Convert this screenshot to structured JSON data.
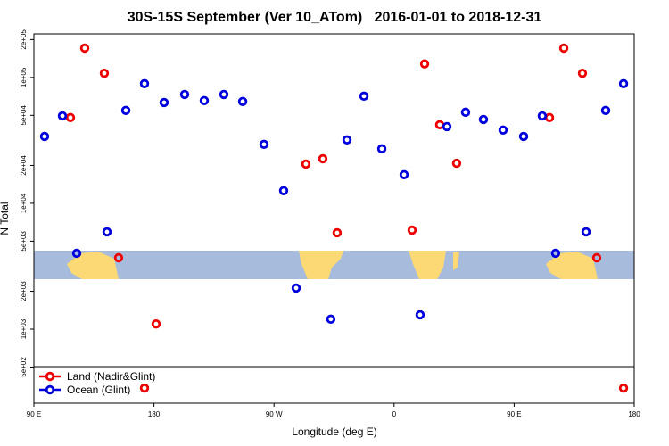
{
  "chart_data": {
    "type": "scatter",
    "title": "30S-15S September (Ver 10_ATom)   2016-01-01 to 2018-12-31",
    "x_label": "Longitude (deg E)",
    "y_label": "N Total",
    "log_y": true,
    "xlim": [
      90,
      540
    ],
    "ylim": [
      258,
      222000
    ],
    "xticks": [
      {
        "value": 90,
        "label": "90 E"
      },
      180,
      {
        "value": 270,
        "label": "90 W"
      },
      {
        "value": 360,
        "label": "0"
      },
      {
        "value": 450,
        "label": "90 E"
      },
      {
        "value": 540,
        "label": "180"
      }
    ],
    "yticks": [
      {
        "value": 200000,
        "label": "2e+05"
      },
      {
        "value": 100000,
        "label": "1e+05"
      },
      {
        "value": 50000,
        "label": "5e+04"
      },
      {
        "value": 20000,
        "label": "2e+04"
      },
      {
        "value": 10000,
        "label": "1e+04"
      },
      {
        "value": 5000,
        "label": "5e+03"
      },
      {
        "value": 2000,
        "label": "2e+03"
      },
      {
        "value": 1000,
        "label": "1e+03"
      },
      {
        "value": 500,
        "label": "5e+02"
      }
    ],
    "series": [
      {
        "name": "Land (Nadir&Glint)",
        "color": "#ee0000",
        "x": [
          117.4,
          128.1,
          142.8,
          153.5,
          181.6,
          172.9,
          293.9,
          306.6,
          317.3,
          373.5,
          382.9,
          394.2,
          406.9,
          476.5,
          487.2,
          501.2,
          511.9,
          532
        ],
        "values": [
          48000,
          171000,
          108000,
          3690,
          1100,
          340,
          20500,
          22600,
          5830,
          6120,
          128000,
          42100,
          20800,
          48000,
          171000,
          108000,
          3690,
          340
        ]
      },
      {
        "name": "Ocean (Glint)",
        "color": "#0000dd",
        "x": [
          98,
          111.4,
          122.1,
          144.8,
          158.9,
          172.9,
          187.6,
          203,
          217.7,
          232.4,
          246.5,
          262.5,
          277.2,
          286.6,
          312.6,
          324.7,
          337.4,
          350.8,
          367.5,
          379.5,
          399.6,
          413.6,
          427,
          441.7,
          457.1,
          471.1,
          481.1,
          503.9,
          518.6,
          532
        ],
        "values": [
          34000,
          49500,
          4010,
          5930,
          54700,
          89200,
          63200,
          73300,
          65500,
          73300,
          64400,
          29400,
          12600,
          2120,
          1200,
          31900,
          71000,
          27100,
          16900,
          1300,
          40700,
          52900,
          46400,
          38200,
          34000,
          49500,
          4010,
          5930,
          54700,
          89200
        ]
      }
    ]
  }
}
